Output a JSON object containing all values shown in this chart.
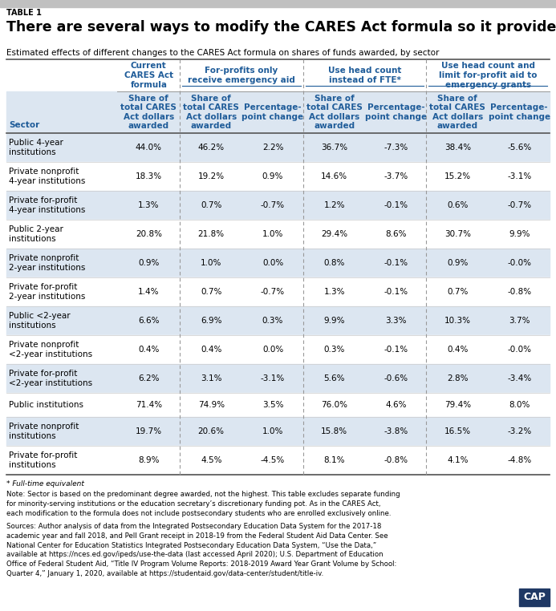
{
  "table_label": "TABLE 1",
  "title": "There are several ways to modify the CARES Act formula so it provides more funds to community colleges",
  "subtitle": "Estimated effects of different changes to the CARES Act formula on shares of funds awarded, by sector",
  "group_headers": [
    {
      "label": "Current\nCARES Act\nformula",
      "start": 0,
      "end": 0
    },
    {
      "label": "For-profits only\nreceive emergency aid",
      "start": 1,
      "end": 2
    },
    {
      "label": "Use head count\ninstead of FTE*",
      "start": 3,
      "end": 4
    },
    {
      "label": "Use head count and\nlimit for-profit aid to\nemergency grants",
      "start": 5,
      "end": 6
    }
  ],
  "col_headers": [
    "Sector",
    "Share of\ntotal CARES\nAct dollars\nawarded",
    "Share of\ntotal CARES\nAct dollars\nawarded",
    "Percentage-\npoint change",
    "Share of\ntotal CARES\nAct dollars\nawarded",
    "Percentage-\npoint change",
    "Share of\ntotal CARES\nAct dollars\nawarded",
    "Percentage-\npoint change"
  ],
  "rows": [
    [
      "Public 4-year\ninstitutions",
      "44.0%",
      "46.2%",
      "2.2%",
      "36.7%",
      "-7.3%",
      "38.4%",
      "-5.6%"
    ],
    [
      "Private nonprofit\n4-year institutions",
      "18.3%",
      "19.2%",
      "0.9%",
      "14.6%",
      "-3.7%",
      "15.2%",
      "-3.1%"
    ],
    [
      "Private for-profit\n4-year institutions",
      "1.3%",
      "0.7%",
      "-0.7%",
      "1.2%",
      "-0.1%",
      "0.6%",
      "-0.7%"
    ],
    [
      "Public 2-year\ninstitutions",
      "20.8%",
      "21.8%",
      "1.0%",
      "29.4%",
      "8.6%",
      "30.7%",
      "9.9%"
    ],
    [
      "Private nonprofit\n2-year institutions",
      "0.9%",
      "1.0%",
      "0.0%",
      "0.8%",
      "-0.1%",
      "0.9%",
      "-0.0%"
    ],
    [
      "Private for-profit\n2-year institutions",
      "1.4%",
      "0.7%",
      "-0.7%",
      "1.3%",
      "-0.1%",
      "0.7%",
      "-0.8%"
    ],
    [
      "Public <2-year\ninstitutions",
      "6.6%",
      "6.9%",
      "0.3%",
      "9.9%",
      "3.3%",
      "10.3%",
      "3.7%"
    ],
    [
      "Private nonprofit\n<2-year institutions",
      "0.4%",
      "0.4%",
      "0.0%",
      "0.3%",
      "-0.1%",
      "0.4%",
      "-0.0%"
    ],
    [
      "Private for-profit\n<2-year institutions",
      "6.2%",
      "3.1%",
      "-3.1%",
      "5.6%",
      "-0.6%",
      "2.8%",
      "-3.4%"
    ],
    [
      "Public institutions",
      "71.4%",
      "74.9%",
      "3.5%",
      "76.0%",
      "4.6%",
      "79.4%",
      "8.0%"
    ],
    [
      "Private nonprofit\ninstitutions",
      "19.7%",
      "20.6%",
      "1.0%",
      "15.8%",
      "-3.8%",
      "16.5%",
      "-3.2%"
    ],
    [
      "Private for-profit\ninstitutions",
      "8.9%",
      "4.5%",
      "-4.5%",
      "8.1%",
      "-0.8%",
      "4.1%",
      "-4.8%"
    ]
  ],
  "footer_asterisk": "* Full-time equivalent",
  "footer_note": "Note: Sector is based on the predominant degree awarded, not the highest. This table excludes separate funding for minority-serving institutions or the education secretary’s discretionary funding pot. As in the CARES Act, each modification to the formula does not include postsecondary students who are enrolled exclusively online.",
  "footer_sources": "Sources: Author analysis of data from the Integrated Postsecondary Education Data System for the 2017-18 academic year and fall 2018, and Pell Grant receipt in 2018-19 from the Federal Student Aid Data Center. See National Center for Education Statistics Integrated Postsecondary Education Data System, “Use the Data,” available at https://nces.ed.gov/ipeds/use-the-data (last accessed April 2020); U.S. Department of Education Office of Federal Student Aid, “Title IV Program Volume Reports: 2018-2019 Award Year Grant Volume by School: Quarter 4,” January 1, 2020, available at https://studentaid.gov/data-center/student/title-iv.",
  "header_color": "#1f5c99",
  "alt_row_color": "#dce6f1",
  "white_row_color": "#ffffff",
  "top_bar_color": "#c0c0c0",
  "cap_box_color": "#1f3864"
}
